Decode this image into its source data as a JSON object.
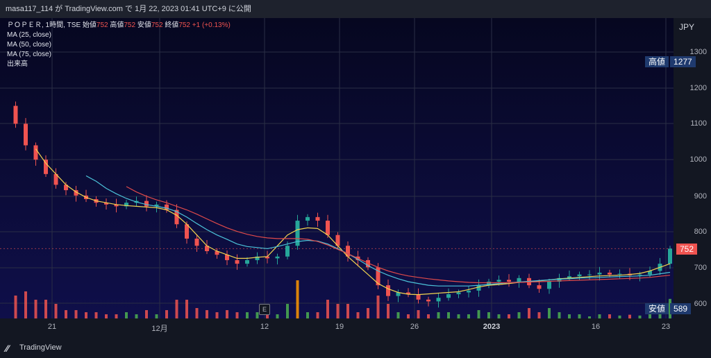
{
  "header": {
    "publish_line": "masa117_114 が TradingView.com で 1月 22, 2023 01:41 UTC+9 に公開"
  },
  "legend": {
    "symbol_line": "ＰＯＰＥＲ, 1時間, TSE",
    "open_label": "始値",
    "open": "752",
    "high_label": "高値",
    "high": "752",
    "low_label": "安値",
    "low": "752",
    "close_label": "終値",
    "close": "752",
    "change": "+1 (+0.13%)",
    "ma25": "MA (25, close)",
    "ma50": "MA (50, close)",
    "ma75": "MA (75, close)",
    "volume": "出来高"
  },
  "price_axis": {
    "currency": "JPY",
    "ticks": [
      "1300",
      "1200",
      "1100",
      "1000",
      "900",
      "800",
      "700",
      "600"
    ],
    "last_price": "752",
    "high_label": "高値",
    "high_value": "1277",
    "low_label": "安値",
    "low_value": "589"
  },
  "time_axis": {
    "ticks": [
      "21",
      "12月",
      "12",
      "19",
      "26",
      "2023",
      "16",
      "23"
    ]
  },
  "event_marker": "E",
  "footer": {
    "brand": "TradingView"
  },
  "colors": {
    "up": "#26a69a",
    "down": "#ef5350",
    "ma25": "#f2d44f",
    "ma50": "#4cc3d9",
    "ma75": "#e04a4a",
    "vol_up": "#4caf50",
    "vol_down": "#ef5350",
    "vol_spike": "#ff9800"
  },
  "chart_data": {
    "type": "line",
    "title": "ＰＯＰＥＲ, 1時間, TSE",
    "ylim": [
      580,
      1330
    ],
    "x_labels": [
      "21",
      "12月",
      "12",
      "19",
      "26",
      "2023",
      "16",
      "23"
    ],
    "series": [
      {
        "name": "close",
        "values": [
          1150,
          1100,
          1040,
          1000,
          960,
          930,
          915,
          900,
          890,
          880,
          875,
          870,
          880,
          885,
          870,
          875,
          860,
          820,
          780,
          760,
          745,
          735,
          720,
          710,
          720,
          730,
          725,
          730,
          760,
          830,
          840,
          830,
          790,
          760,
          730,
          720,
          700,
          650,
          620,
          630,
          625,
          610,
          605,
          615,
          625,
          630,
          635,
          650,
          660,
          665,
          660,
          670,
          650,
          640,
          660,
          670,
          675,
          680,
          680,
          685,
          680,
          682,
          678,
          680,
          690,
          710,
          752
        ]
      },
      {
        "name": "MA (25, close)",
        "values": [
          null,
          null,
          null,
          1030,
          990,
          960,
          930,
          910,
          895,
          885,
          880,
          875,
          872,
          870,
          868,
          866,
          860,
          845,
          820,
          790,
          760,
          745,
          735,
          725,
          725,
          728,
          730,
          760,
          790,
          805,
          810,
          808,
          790,
          760,
          730,
          705,
          680,
          655,
          640,
          630,
          625,
          624,
          626,
          628,
          630,
          632,
          638,
          645,
          650,
          652,
          655,
          658,
          660,
          662,
          665,
          668,
          670,
          672,
          674,
          676,
          677,
          678,
          680,
          683,
          690,
          700,
          710
        ]
      },
      {
        "name": "MA (50, close)",
        "values": [
          null,
          null,
          null,
          null,
          null,
          null,
          null,
          null,
          955,
          940,
          920,
          905,
          892,
          882,
          875,
          870,
          865,
          855,
          840,
          822,
          805,
          790,
          778,
          765,
          758,
          755,
          752,
          758,
          765,
          772,
          775,
          773,
          765,
          752,
          738,
          722,
          705,
          690,
          678,
          668,
          660,
          655,
          650,
          648,
          648,
          648,
          648,
          650,
          652,
          655,
          657,
          659,
          661,
          663,
          665,
          667,
          668,
          670,
          671,
          672,
          673,
          674,
          675,
          676,
          678,
          682,
          686
        ]
      },
      {
        "name": "MA (75, close)",
        "values": [
          null,
          null,
          null,
          null,
          null,
          null,
          null,
          null,
          null,
          null,
          null,
          null,
          925,
          910,
          898,
          888,
          880,
          870,
          860,
          848,
          835,
          822,
          810,
          800,
          792,
          786,
          782,
          780,
          780,
          780,
          778,
          772,
          762,
          750,
          738,
          725,
          712,
          700,
          690,
          682,
          676,
          672,
          668,
          665,
          662,
          660,
          658,
          657,
          657,
          657,
          657,
          658,
          659,
          660,
          661,
          662,
          663,
          664,
          665,
          666,
          667,
          668,
          669,
          670,
          672,
          675,
          678
        ]
      }
    ],
    "high": 1277,
    "low": 589,
    "last": 752
  }
}
